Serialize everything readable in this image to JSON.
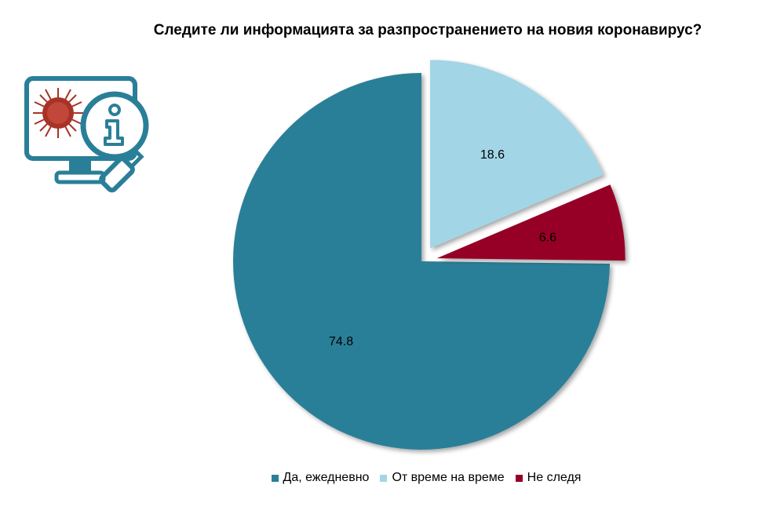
{
  "chart_data": {
    "type": "pie",
    "title": "Следите ли информацията за разпространението на новия коронавирус?",
    "categories": [
      "Да, ежедневно",
      "От време на време",
      "Не следя"
    ],
    "values": [
      74.8,
      18.6,
      6.6
    ],
    "data_labels": [
      "74.8",
      "18.6",
      "6.6"
    ],
    "colors": [
      "#2a7f98",
      "#a2d5e6",
      "#970026"
    ],
    "exploded": [
      false,
      true,
      true
    ],
    "legend_position": "bottom"
  },
  "icon": {
    "name": "monitor-virus-info-magnifier-icon"
  }
}
